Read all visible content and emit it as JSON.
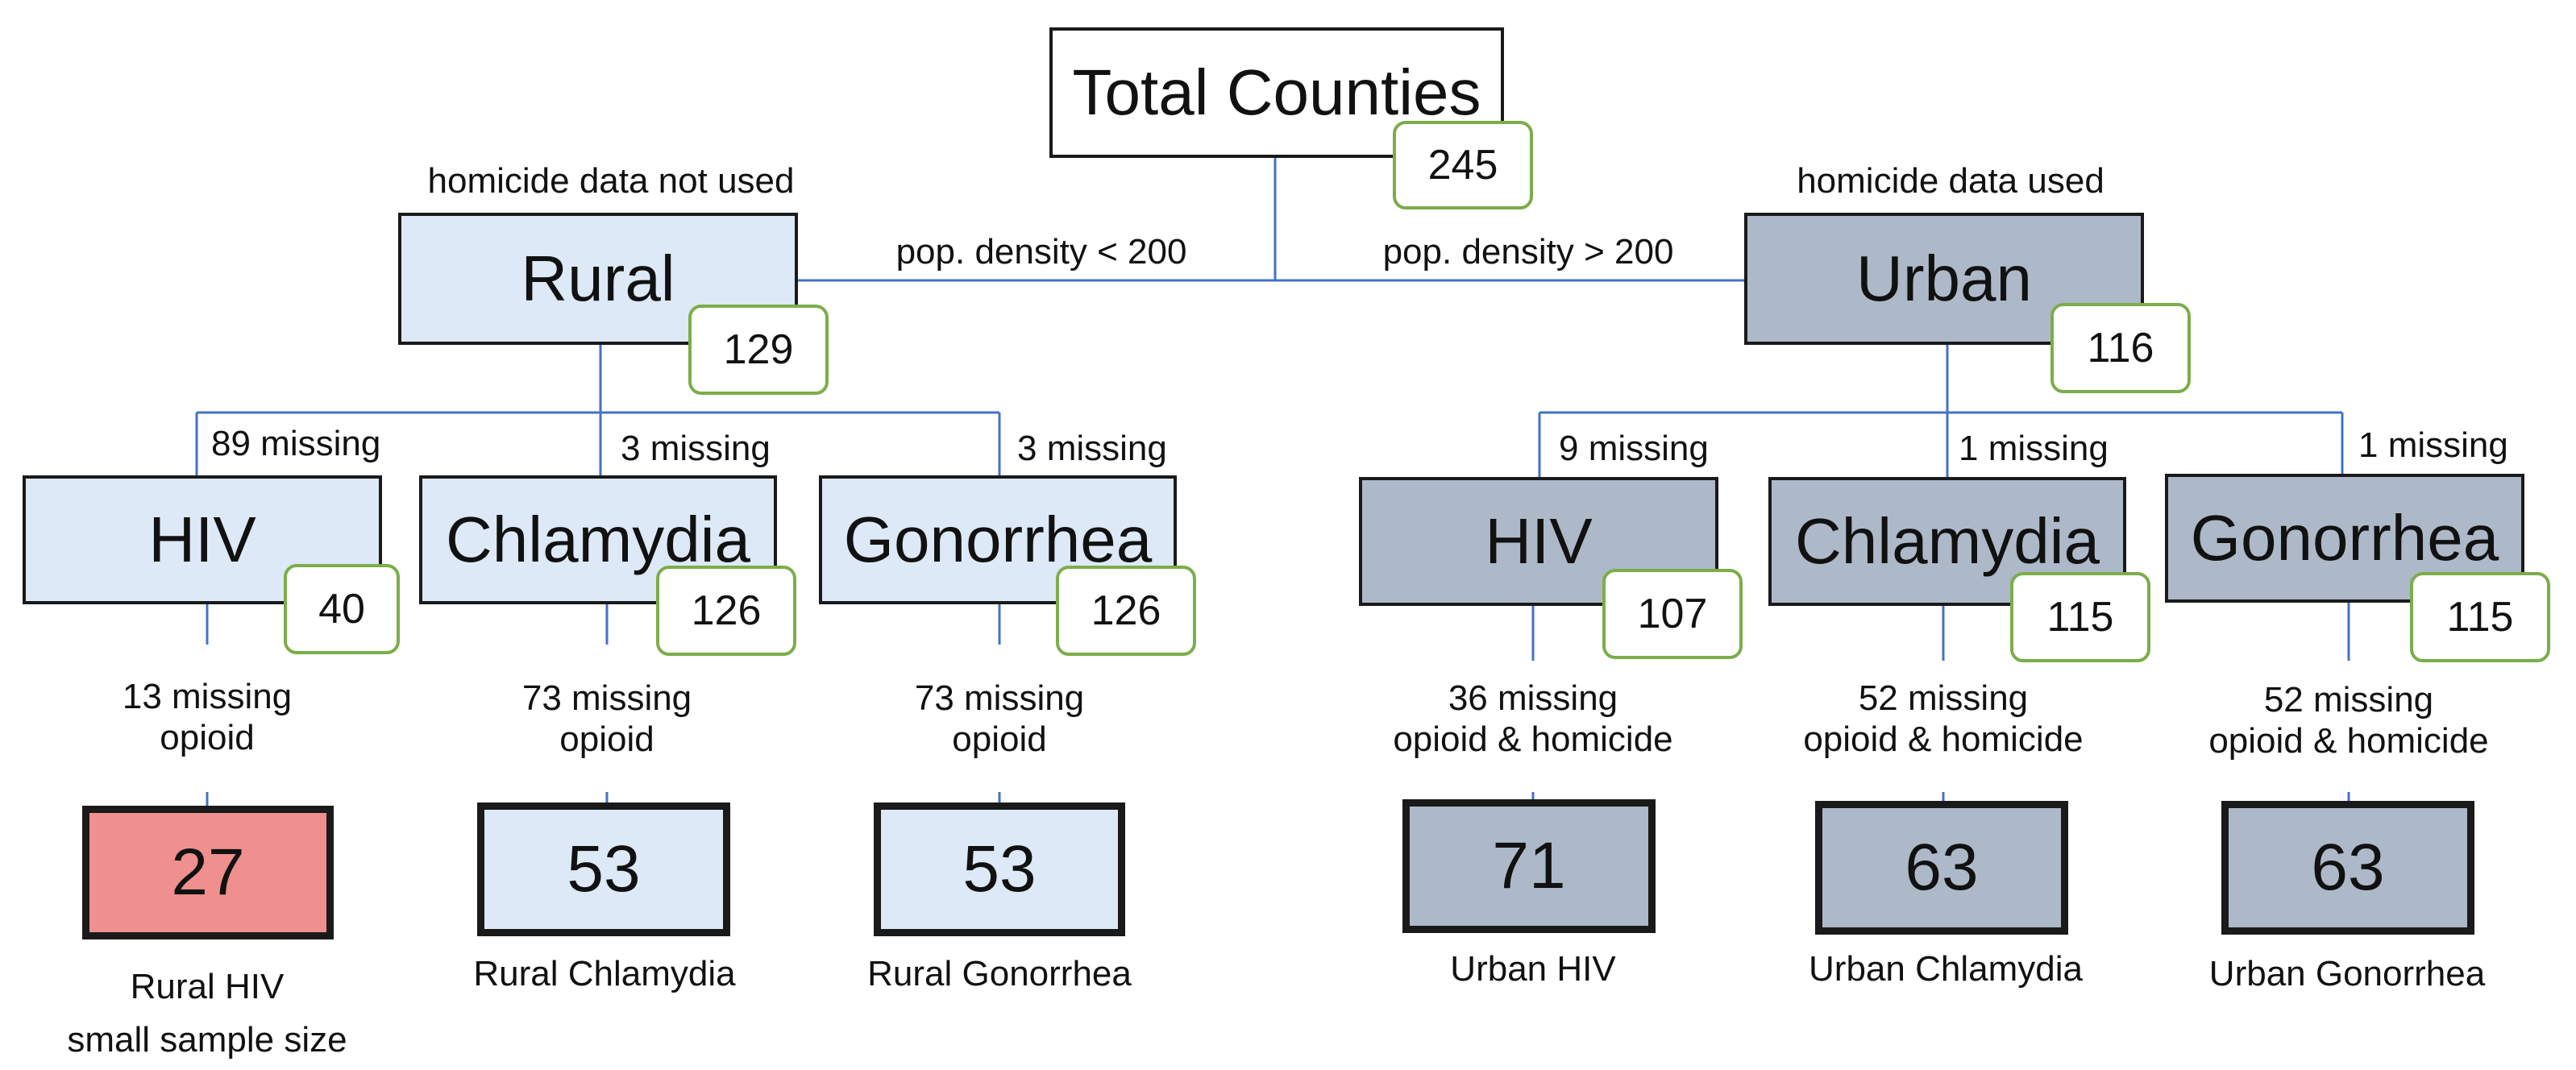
{
  "colors": {
    "rural": "#dde9f6",
    "urban": "#adb9c9",
    "small_sample": "#ef908e",
    "count_border": "#7cad4a",
    "connector": "#4472c4"
  },
  "root": {
    "title": "Total Counties",
    "count": "245"
  },
  "branches": {
    "rural": {
      "title": "Rural",
      "count": "129",
      "note": "homicide data not used",
      "condition": "pop. density < 200"
    },
    "urban": {
      "title": "Urban",
      "count": "116",
      "note": "homicide data used",
      "condition": "pop. density > 200"
    }
  },
  "rural_nodes": [
    {
      "title": "HIV",
      "count": "40",
      "missing": "89 missing",
      "filter_line1": "13 missing",
      "filter_line2": "opioid",
      "result": "27",
      "caption_line1": "Rural HIV",
      "caption_line2": "small sample size"
    },
    {
      "title": "Chlamydia",
      "count": "126",
      "missing": "3 missing",
      "filter_line1": "73 missing",
      "filter_line2": "opioid",
      "result": "53",
      "caption_line1": "Rural Chlamydia"
    },
    {
      "title": "Gonorrhea",
      "count": "126",
      "missing": "3 missing",
      "filter_line1": "73 missing",
      "filter_line2": "opioid",
      "result": "53",
      "caption_line1": "Rural Gonorrhea"
    }
  ],
  "urban_nodes": [
    {
      "title": "HIV",
      "count": "107",
      "missing": "9 missing",
      "filter_line1": "36 missing",
      "filter_line2": "opioid & homicide",
      "result": "71",
      "caption_line1": "Urban HIV"
    },
    {
      "title": "Chlamydia",
      "count": "115",
      "missing": "1 missing",
      "filter_line1": "52 missing",
      "filter_line2": "opioid & homicide",
      "result": "63",
      "caption_line1": "Urban Chlamydia"
    },
    {
      "title": "Gonorrhea",
      "count": "115",
      "missing": "1 missing",
      "filter_line1": "52 missing",
      "filter_line2": "opioid & homicide",
      "result": "63",
      "caption_line1": "Urban Gonorrhea"
    }
  ]
}
